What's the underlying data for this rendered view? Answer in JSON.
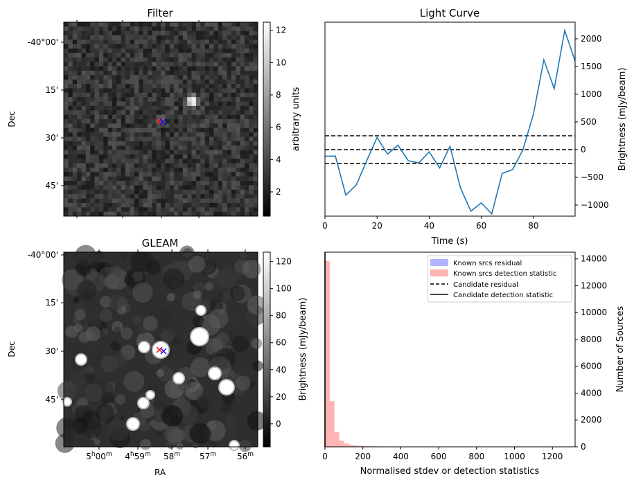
{
  "filter_panel": {
    "title": "Filter",
    "ylabel": "Dec",
    "dec_ticks": [
      "-40°00'",
      "15'",
      "30'",
      "45'"
    ],
    "colorbar": {
      "label": "arbitrary units",
      "ticks": [
        2,
        4,
        6,
        8,
        10,
        12
      ],
      "range": [
        0.5,
        12.5
      ]
    },
    "cmap": "gray",
    "markers": [
      {
        "symbol": "x",
        "color": "#ff0000"
      },
      {
        "symbol": "x",
        "color": "#0000ff"
      }
    ]
  },
  "gleam_panel": {
    "title": "GLEAM",
    "ylabel": "Dec",
    "xlabel": "RA",
    "dec_ticks": [
      "-40°00'",
      "15'",
      "30'",
      "45'"
    ],
    "ra_ticks": [
      {
        "h": "5",
        "hu": "h",
        "m": "00",
        "mu": "m"
      },
      {
        "h": "4",
        "hu": "h",
        "m": "59",
        "mu": "m"
      },
      {
        "h": "",
        "hu": "",
        "m": "58",
        "mu": "m"
      },
      {
        "h": "",
        "hu": "",
        "m": "57",
        "mu": "m"
      },
      {
        "h": "",
        "hu": "",
        "m": "56",
        "mu": "m"
      }
    ],
    "colorbar": {
      "label": "Brightness (mJy/beam)",
      "ticks": [
        0,
        20,
        40,
        60,
        80,
        100,
        120
      ],
      "range": [
        -17,
        127
      ]
    },
    "cmap": "gray",
    "markers": [
      {
        "symbol": "x",
        "color": "#ff0000"
      },
      {
        "symbol": "x",
        "color": "#0000ff"
      }
    ]
  },
  "chart_data": [
    {
      "type": "line",
      "title": "Light Curve",
      "xlabel": "Time (s)",
      "ylabel": "Brightness (mJy/beam)",
      "xlim": [
        0,
        96
      ],
      "ylim": [
        -1200,
        2300
      ],
      "xticks": [
        0,
        20,
        40,
        60,
        80
      ],
      "yticks": [
        -1000,
        -500,
        0,
        500,
        1000,
        1500,
        2000
      ],
      "color": "#1f77b4",
      "series": [
        {
          "x": [
            0,
            4,
            8,
            12,
            16,
            20,
            24,
            28,
            32,
            36,
            40,
            44,
            48,
            52,
            56,
            60,
            64,
            68,
            72,
            76,
            80,
            84,
            88,
            92,
            96
          ],
          "y": [
            -120,
            -115,
            -820,
            -640,
            -200,
            220,
            -80,
            80,
            -200,
            -240,
            -40,
            -330,
            60,
            -690,
            -1110,
            -960,
            -1160,
            -430,
            -360,
            0,
            640,
            1620,
            1100,
            2150,
            1600
          ]
        }
      ],
      "hlines": [
        {
          "y": 250,
          "style": "dashed",
          "color": "#000000"
        },
        {
          "y": 0,
          "style": "dashed",
          "color": "#000000"
        },
        {
          "y": -250,
          "style": "dashed",
          "color": "#000000"
        }
      ]
    },
    {
      "type": "bar",
      "title": "",
      "xlabel": "Normalised stdev or detection statistics",
      "ylabel": "Number of Sources",
      "xlim": [
        0,
        1320
      ],
      "ylim": [
        0,
        14500
      ],
      "xticks": [
        0,
        200,
        400,
        600,
        800,
        1000,
        1200
      ],
      "yticks": [
        0,
        2000,
        4000,
        6000,
        8000,
        10000,
        12000,
        14000
      ],
      "bin_width": 25,
      "series": [
        {
          "name": "Known srcs residual",
          "color": "#b3b3ff",
          "bins": [],
          "values": []
        },
        {
          "name": "Known srcs detection statistic",
          "color": "#ffb3b3",
          "bins": [
            0,
            25,
            50,
            75,
            100,
            125,
            150,
            175,
            200,
            225,
            250,
            275,
            300,
            325,
            350,
            375,
            400,
            425,
            450,
            475,
            500,
            525,
            550,
            575,
            600,
            625,
            650,
            675,
            700,
            725,
            750,
            775,
            800,
            825,
            850,
            875,
            900,
            925,
            950,
            975,
            1000,
            1025,
            1050,
            1075,
            1100,
            1125,
            1150,
            1175,
            1200,
            1225,
            1250,
            1275,
            1300
          ],
          "values": [
            13850,
            3400,
            1100,
            450,
            250,
            150,
            100,
            80,
            60,
            45,
            35,
            30,
            25,
            20,
            18,
            15,
            15,
            12,
            12,
            10,
            10,
            10,
            8,
            8,
            8,
            8,
            7,
            7,
            7,
            6,
            6,
            6,
            6,
            5,
            5,
            5,
            5,
            5,
            5,
            5,
            5,
            5,
            5,
            5,
            5,
            5,
            5,
            5,
            5,
            5,
            5,
            5,
            5
          ]
        },
        {
          "name": "Candidate residual",
          "style": "dashed",
          "color": "#000000"
        },
        {
          "name": "Candidate detection statistic",
          "style": "solid",
          "color": "#000000",
          "x": 0
        }
      ]
    }
  ]
}
